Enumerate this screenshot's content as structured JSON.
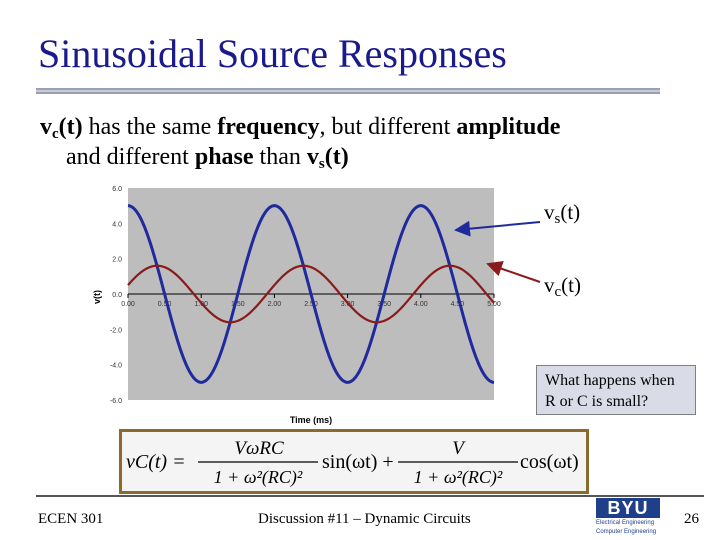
{
  "slide": {
    "title": "Sinusoidal Source Responses",
    "bullet": {
      "p1_sym": "v",
      "p1_sub": "c",
      "p1_arg": "(t)",
      "p2": " has the same ",
      "p3": "frequency",
      "p4": ", but different ",
      "p5": "amplitude",
      "p6": "and different ",
      "p7": "phase",
      "p8": " than ",
      "p9_sym": "v",
      "p9_sub": "s",
      "p9_arg": "(t)"
    },
    "callouts": {
      "vs_sym": "v",
      "vs_sub": "s",
      "vs_arg": "(t)",
      "vc_sym": "v",
      "vc_sub": "c",
      "vc_arg": "(t)"
    },
    "question": "What happens when R or C is small?",
    "equation": {
      "lhs": "vC(t) =",
      "num1": "VωRC",
      "den1": "1 + ω²(RC)²",
      "sin": "sin(ωt) +",
      "num2": "V",
      "den2": "1 + ω²(RC)²",
      "cos": "cos(ωt)"
    },
    "footer": {
      "course": "ECEN 301",
      "topic": "Discussion #11 – Dynamic Circuits",
      "page": "26"
    },
    "logo": {
      "word": "BYU",
      "sub1": "Electrical Engineering",
      "sub2": "Computer Engineering"
    }
  },
  "colors": {
    "title": "#1a1a8c",
    "vs": "#1f2a9c",
    "vc": "#8b1a1a",
    "plot_bg": "#bdbdbd"
  },
  "chart_data": {
    "type": "line",
    "xlabel": "Time (ms)",
    "ylabel": "v(t)",
    "x_ticks": [
      "0.00",
      "0.50",
      "1.00",
      "1.50",
      "2.00",
      "2.50",
      "3.00",
      "3.50",
      "4.00",
      "4.50",
      "5.00"
    ],
    "y_ticks": [
      "6.0",
      "4.0",
      "2.0",
      "0.0",
      "-2.0",
      "-4.0",
      "-6.0"
    ],
    "xlim": [
      0,
      5
    ],
    "ylim": [
      -6,
      6
    ],
    "grid": false,
    "series": [
      {
        "color": "#1f2a9c",
        "amplitude": 5.0,
        "period_ms": 2.0,
        "phase_rad": 1.5708
      },
      {
        "color": "#8b1a1a",
        "amplitude": 1.6,
        "period_ms": 2.0,
        "phase_rad": 0.32
      }
    ]
  }
}
